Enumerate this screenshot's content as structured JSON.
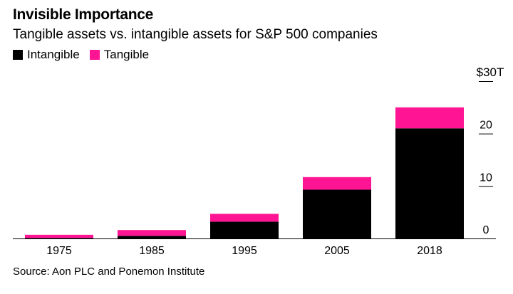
{
  "header": {
    "title": "Invisible Importance",
    "subtitle": "Tangible assets vs. intangible assets for S&P 500 companies"
  },
  "legend": {
    "items": [
      {
        "label": "Intangible",
        "color": "#000000"
      },
      {
        "label": "Tangible",
        "color": "#ff1493"
      }
    ]
  },
  "footer": {
    "source": "Source: Aon PLC and Ponemon Institute"
  },
  "chart_data": {
    "type": "bar",
    "stacked": true,
    "categories": [
      "1975",
      "1985",
      "1995",
      "2005",
      "2018"
    ],
    "series": [
      {
        "name": "Intangible",
        "color": "#000000",
        "values": [
          0.1,
          0.5,
          3.2,
          9.3,
          21.0
        ]
      },
      {
        "name": "Tangible",
        "color": "#ff1493",
        "values": [
          0.6,
          1.1,
          1.5,
          2.4,
          4.0
        ]
      }
    ],
    "ylim": [
      0,
      30
    ],
    "yticks": [
      0,
      10,
      20,
      30
    ],
    "ytick_labels": [
      "0",
      "10",
      "20",
      "$30T"
    ],
    "grid": false,
    "legend_position": "top-left",
    "y_axis_side": "right"
  }
}
